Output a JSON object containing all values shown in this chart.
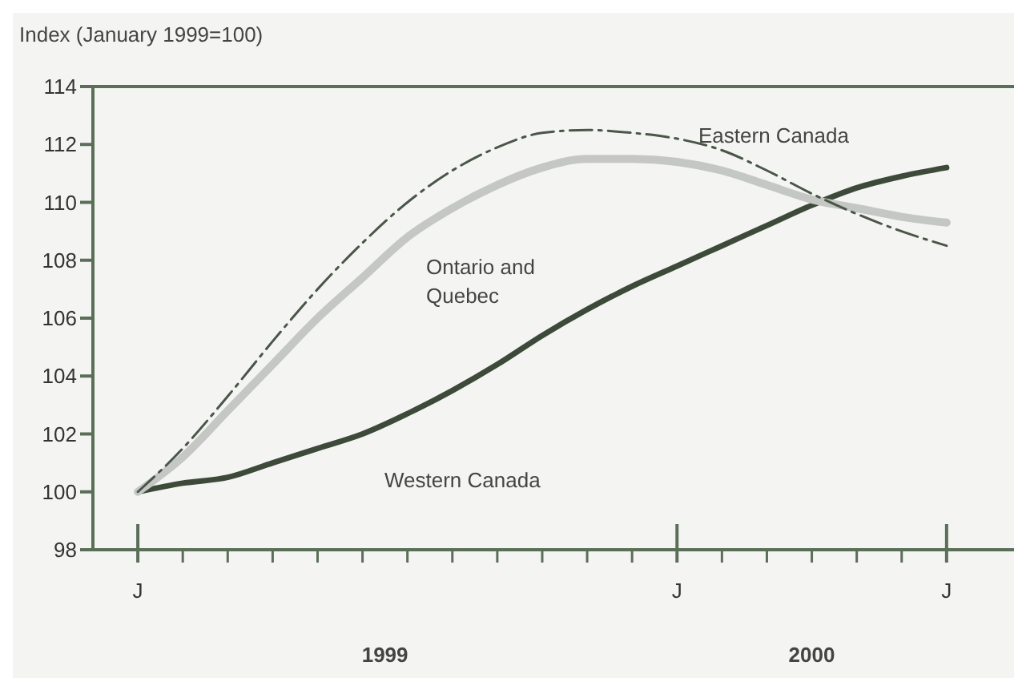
{
  "chart_data": {
    "type": "line",
    "ylabel": "Index (January 1999=100)",
    "categories": [
      "J",
      null,
      null,
      null,
      null,
      null,
      null,
      null,
      null,
      null,
      null,
      null,
      "J",
      null,
      null,
      null,
      null,
      null,
      "J"
    ],
    "ylim": [
      98,
      114
    ],
    "yticks": [
      98,
      100,
      102,
      104,
      106,
      108,
      110,
      112,
      114
    ],
    "grid": false,
    "legend": false,
    "annotations": [
      "1999",
      "2000"
    ],
    "series": [
      {
        "name": "Western Canada",
        "color": "#3d4a3a",
        "line_style": "solid",
        "values": [
          100,
          100.3,
          100.5,
          101,
          101.5,
          102,
          102.7,
          103.5,
          104.4,
          105.4,
          106.3,
          107.1,
          107.8,
          108.5,
          109.2,
          109.9,
          110.5,
          110.9,
          111.2
        ]
      },
      {
        "name": "Ontario and Quebec",
        "color": "#c4c7c4",
        "line_style": "solid",
        "values": [
          100,
          101.2,
          102.8,
          104.4,
          106,
          107.4,
          108.8,
          109.8,
          110.6,
          111.2,
          111.5,
          111.5,
          111.4,
          111.1,
          110.6,
          110.1,
          109.8,
          109.5,
          109.3
        ]
      },
      {
        "name": "Eastern Canada",
        "color": "#4a5648",
        "line_style": "dashed",
        "values": [
          100,
          101.5,
          103.3,
          105.2,
          107,
          108.6,
          110,
          111.1,
          111.9,
          112.4,
          112.5,
          112.4,
          112.2,
          111.8,
          111.1,
          110.3,
          109.6,
          109,
          108.5
        ]
      }
    ]
  }
}
